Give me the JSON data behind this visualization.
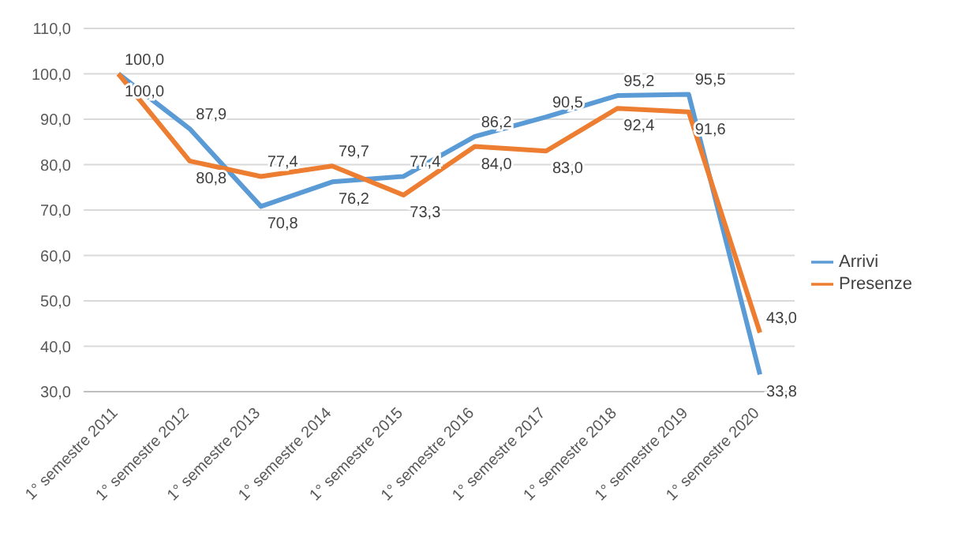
{
  "chart_data": {
    "type": "line",
    "categories": [
      "1° semestre 2011",
      "1° semestre 2012",
      "1° semestre 2013",
      "1° semestre 2014",
      "1° semestre 2015",
      "1° semestre 2016",
      "1° semestre 2017",
      "1° semestre 2018",
      "1° semestre 2019",
      "1° semestre 2020"
    ],
    "series": [
      {
        "name": "Arrivi",
        "color": "#5b9bd5",
        "values": [
          100.0,
          87.9,
          70.8,
          76.2,
          77.4,
          86.2,
          90.5,
          95.2,
          95.5,
          33.8
        ],
        "value_labels": [
          "100,0",
          "87,9",
          "70,8",
          "76,2",
          "77,4",
          "86,2",
          "90,5",
          "95,2",
          "95,5",
          "33,8"
        ]
      },
      {
        "name": "Presenze",
        "color": "#ed7d31",
        "values": [
          100.0,
          80.8,
          77.4,
          79.7,
          73.3,
          84.0,
          83.0,
          92.4,
          91.6,
          43.0
        ],
        "value_labels": [
          "100,0",
          "80,8",
          "77,4",
          "79,7",
          "73,3",
          "84,0",
          "83,0",
          "92,4",
          "91,6",
          "43,0"
        ]
      }
    ],
    "ylim": [
      30,
      110
    ],
    "yticks": [
      {
        "value": 30,
        "label": "30,0"
      },
      {
        "value": 40,
        "label": "40,0"
      },
      {
        "value": 50,
        "label": "50,0"
      },
      {
        "value": 60,
        "label": "60,0"
      },
      {
        "value": 70,
        "label": "70,0"
      },
      {
        "value": 80,
        "label": "80,0"
      },
      {
        "value": 90,
        "label": "90,0"
      },
      {
        "value": 100,
        "label": "100,0"
      },
      {
        "value": 110,
        "label": "110,0"
      }
    ],
    "grid": "y",
    "legend": "right",
    "marker": "none",
    "line_style": "solid"
  }
}
